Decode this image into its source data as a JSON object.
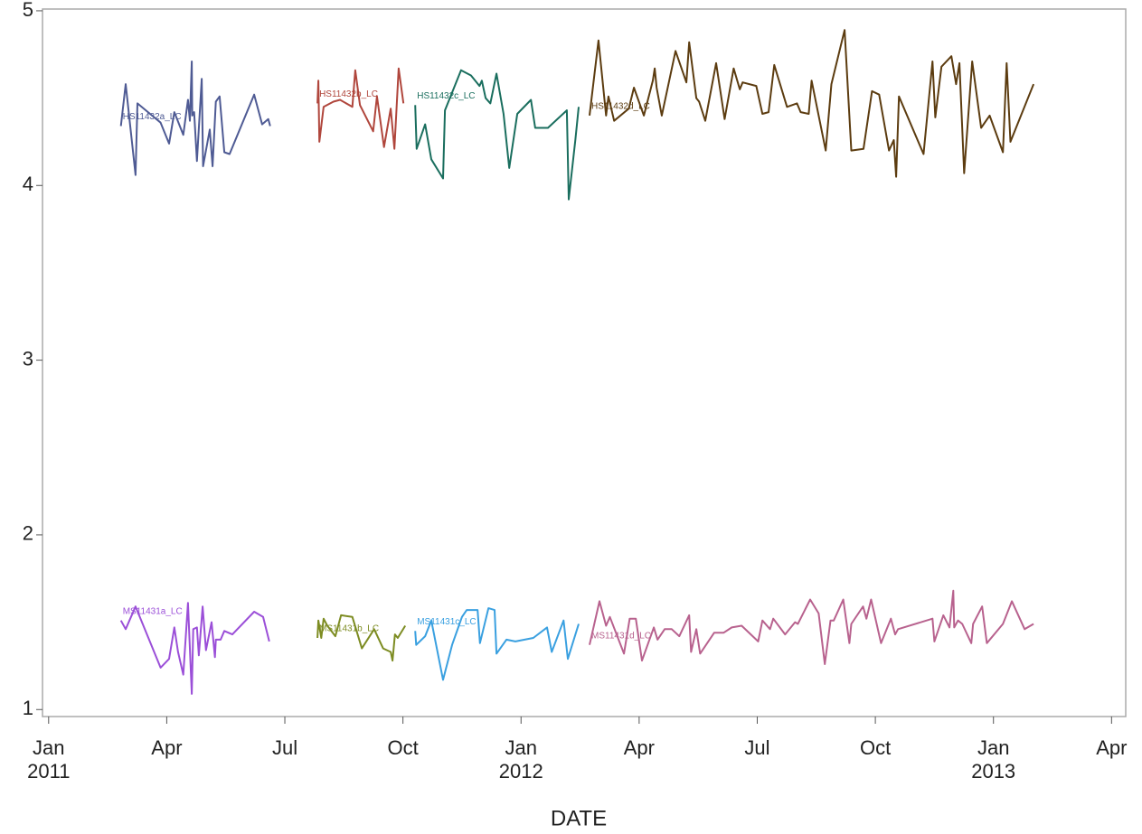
{
  "chart_data": {
    "type": "line",
    "x_label": "DATE",
    "xlim": [
      2010.987,
      2013.28
    ],
    "ylim": [
      0.96,
      5.01
    ],
    "xticks": [
      {
        "value": 2011,
        "label": "Jan\n2011"
      },
      {
        "value": 2011.25,
        "label": "Apr"
      },
      {
        "value": 2011.5,
        "label": "Jul"
      },
      {
        "value": 2011.75,
        "label": "Oct"
      },
      {
        "value": 2012,
        "label": "Jan\n2012"
      },
      {
        "value": 2012.25,
        "label": "Apr"
      },
      {
        "value": 2012.5,
        "label": "Jul"
      },
      {
        "value": 2012.75,
        "label": "Oct"
      },
      {
        "value": 2013,
        "label": "Jan\n2013"
      },
      {
        "value": 2013.25,
        "label": "Apr"
      }
    ],
    "yticks": [
      1,
      2,
      3,
      4,
      5
    ],
    "series": [
      {
        "name": "HS11432a_LC",
        "color": "#4f5b94",
        "x": [
          2011.153,
          2011.163,
          2011.184,
          2011.188,
          2011.237,
          2011.255,
          2011.266,
          2011.285,
          2011.295,
          2011.299,
          2011.303,
          2011.304,
          2011.308,
          2011.314,
          2011.324,
          2011.327,
          2011.341,
          2011.347,
          2011.354,
          2011.362,
          2011.372,
          2011.383,
          2011.435,
          2011.452,
          2011.465,
          2011.469
        ],
        "values": [
          4.34,
          4.58,
          4.06,
          4.47,
          4.36,
          4.24,
          4.42,
          4.29,
          4.49,
          4.37,
          4.71,
          4.4,
          4.42,
          4.14,
          4.61,
          4.11,
          4.32,
          4.11,
          4.48,
          4.51,
          4.19,
          4.18,
          4.52,
          4.35,
          4.38,
          4.34
        ]
      },
      {
        "name": "HS11432b_LC",
        "color": "#b0463c",
        "x": [
          2011.569,
          2011.571,
          2011.573,
          2011.582,
          2011.603,
          2011.617,
          2011.643,
          2011.649,
          2011.659,
          2011.687,
          2011.695,
          2011.71,
          2011.724,
          2011.732,
          2011.741,
          2011.751
        ],
        "values": [
          4.47,
          4.6,
          4.25,
          4.45,
          4.48,
          4.49,
          4.45,
          4.66,
          4.46,
          4.31,
          4.51,
          4.22,
          4.44,
          4.21,
          4.67,
          4.47
        ]
      },
      {
        "name": "HS11432c_LC",
        "color": "#1a6e5e",
        "x": [
          2011.776,
          2011.779,
          2011.797,
          2011.81,
          2011.835,
          2011.839,
          2011.873,
          2011.894,
          2011.912,
          2011.917,
          2011.925,
          2011.935,
          2011.948,
          2011.963,
          2011.975,
          2011.992,
          2012.021,
          2012.03,
          2012.057,
          2012.097,
          2012.101,
          2012.115,
          2012.122
        ],
        "values": [
          4.46,
          4.21,
          4.35,
          4.15,
          4.04,
          4.43,
          4.66,
          4.63,
          4.57,
          4.6,
          4.5,
          4.47,
          4.64,
          4.41,
          4.1,
          4.41,
          4.49,
          4.33,
          4.33,
          4.43,
          3.92,
          4.26,
          4.45
        ]
      },
      {
        "name": "HS11432d_LC",
        "color": "#5c3c10",
        "x": [
          2012.145,
          2012.164,
          2012.18,
          2012.185,
          2012.197,
          2012.228,
          2012.239,
          2012.26,
          2012.279,
          2012.283,
          2012.287,
          2012.298,
          2012.327,
          2012.35,
          2012.356,
          2012.371,
          2012.377,
          2012.39,
          2012.413,
          2012.431,
          2012.45,
          2012.463,
          2012.469,
          2012.498,
          2012.511,
          2012.524,
          2012.536,
          2012.563,
          2012.584,
          2012.592,
          2012.609,
          2012.615,
          2012.645,
          2012.657,
          2012.685,
          2012.699,
          2012.725,
          2012.743,
          2012.758,
          2012.779,
          2012.789,
          2012.794,
          2012.8,
          2012.852,
          2012.871,
          2012.877,
          2012.89,
          2012.911,
          2012.921,
          2012.928,
          2012.938,
          2012.955,
          2012.974,
          2012.992,
          2013.02,
          2013.028,
          2013.036,
          2013.085
        ],
        "values": [
          4.4,
          4.83,
          4.4,
          4.51,
          4.37,
          4.44,
          4.56,
          4.4,
          4.6,
          4.67,
          4.56,
          4.4,
          4.77,
          4.59,
          4.82,
          4.5,
          4.48,
          4.37,
          4.7,
          4.38,
          4.67,
          4.55,
          4.59,
          4.57,
          4.41,
          4.42,
          4.69,
          4.45,
          4.47,
          4.42,
          4.41,
          4.6,
          4.2,
          4.58,
          4.89,
          4.2,
          4.21,
          4.54,
          4.52,
          4.2,
          4.26,
          4.05,
          4.51,
          4.18,
          4.71,
          4.39,
          4.68,
          4.74,
          4.58,
          4.7,
          4.07,
          4.71,
          4.33,
          4.4,
          4.19,
          4.7,
          4.25,
          4.58
        ]
      },
      {
        "name": "MS11431a_LC",
        "color": "#9b4fd8",
        "x": [
          2011.153,
          2011.163,
          2011.184,
          2011.237,
          2011.255,
          2011.266,
          2011.274,
          2011.285,
          2011.295,
          2011.299,
          2011.303,
          2011.306,
          2011.314,
          2011.318,
          2011.326,
          2011.333,
          2011.345,
          2011.352,
          2011.354,
          2011.364,
          2011.372,
          2011.389,
          2011.435,
          2011.454,
          2011.467
        ],
        "values": [
          1.51,
          1.46,
          1.59,
          1.24,
          1.29,
          1.47,
          1.33,
          1.2,
          1.61,
          1.35,
          1.09,
          1.46,
          1.47,
          1.31,
          1.59,
          1.34,
          1.5,
          1.3,
          1.4,
          1.4,
          1.45,
          1.43,
          1.56,
          1.53,
          1.39
        ]
      },
      {
        "name": "MS11431b_LC",
        "color": "#7d8c22",
        "x": [
          2011.569,
          2011.571,
          2011.577,
          2011.582,
          2011.59,
          2011.607,
          2011.619,
          2011.643,
          2011.663,
          2011.689,
          2011.708,
          2011.724,
          2011.728,
          2011.733,
          2011.739,
          2011.755
        ],
        "values": [
          1.41,
          1.51,
          1.41,
          1.52,
          1.48,
          1.42,
          1.54,
          1.53,
          1.35,
          1.46,
          1.35,
          1.33,
          1.28,
          1.43,
          1.41,
          1.48
        ]
      },
      {
        "name": "MS11431c_LC",
        "color": "#3aa0e0",
        "x": [
          2011.776,
          2011.778,
          2011.797,
          2011.81,
          2011.835,
          2011.854,
          2011.875,
          2011.885,
          2011.908,
          2011.913,
          2011.931,
          2011.944,
          2011.948,
          2011.969,
          2011.988,
          2012.026,
          2012.055,
          2012.065,
          2012.09,
          2012.099,
          2012.122
        ],
        "values": [
          1.45,
          1.37,
          1.42,
          1.51,
          1.17,
          1.37,
          1.53,
          1.57,
          1.57,
          1.38,
          1.58,
          1.57,
          1.32,
          1.4,
          1.39,
          1.41,
          1.47,
          1.33,
          1.51,
          1.29,
          1.49
        ]
      },
      {
        "name": "MS11431d_LC",
        "color": "#b8628e",
        "x": [
          2012.145,
          2012.166,
          2012.18,
          2012.188,
          2012.218,
          2012.23,
          2012.243,
          2012.256,
          2012.281,
          2012.289,
          2012.304,
          2012.319,
          2012.335,
          2012.356,
          2012.36,
          2012.371,
          2012.379,
          2012.409,
          2012.429,
          2012.446,
          2012.467,
          2012.502,
          2012.511,
          2012.527,
          2012.534,
          2012.559,
          2012.58,
          2012.586,
          2012.612,
          2012.63,
          2012.643,
          2012.655,
          2012.662,
          2012.682,
          2012.695,
          2012.699,
          2012.724,
          2012.731,
          2012.741,
          2012.762,
          2012.783,
          2012.792,
          2012.798,
          2012.871,
          2012.875,
          2012.894,
          2012.907,
          2012.915,
          2012.917,
          2012.925,
          2012.934,
          2012.953,
          2012.957,
          2012.976,
          2012.986,
          2013.02,
          2013.039,
          2013.066,
          2013.085
        ],
        "values": [
          1.37,
          1.62,
          1.48,
          1.53,
          1.32,
          1.52,
          1.52,
          1.28,
          1.47,
          1.4,
          1.46,
          1.46,
          1.42,
          1.54,
          1.33,
          1.46,
          1.32,
          1.44,
          1.44,
          1.47,
          1.48,
          1.39,
          1.51,
          1.46,
          1.52,
          1.43,
          1.5,
          1.49,
          1.63,
          1.55,
          1.26,
          1.51,
          1.51,
          1.63,
          1.38,
          1.49,
          1.59,
          1.52,
          1.63,
          1.38,
          1.52,
          1.43,
          1.46,
          1.52,
          1.39,
          1.54,
          1.47,
          1.68,
          1.47,
          1.51,
          1.49,
          1.38,
          1.49,
          1.59,
          1.38,
          1.49,
          1.62,
          1.46,
          1.49
        ]
      }
    ]
  }
}
